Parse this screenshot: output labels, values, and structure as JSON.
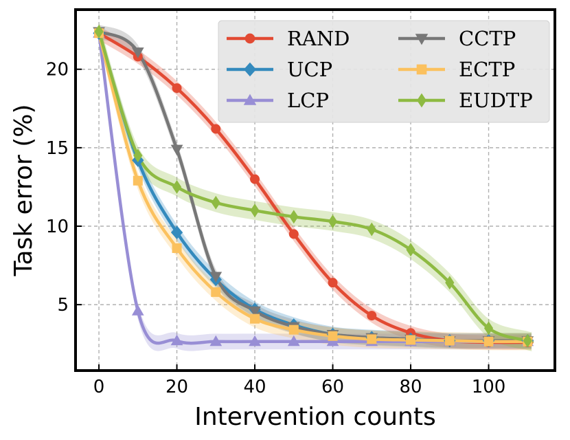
{
  "chart_data": {
    "type": "line",
    "title": "",
    "xlabel": "Intervention counts",
    "ylabel": "Task error (%)",
    "xlim": [
      -6,
      117
    ],
    "ylim": [
      0.8,
      23.8
    ],
    "xticks": [
      0,
      20,
      40,
      60,
      80,
      100
    ],
    "yticks": [
      5,
      10,
      15,
      20
    ],
    "grid": true,
    "legend_position": "top-right",
    "series": [
      {
        "name": "RAND",
        "color": "#e24a33",
        "marker": "circle",
        "x": [
          0,
          10,
          20,
          30,
          40,
          50,
          60,
          70,
          80,
          90,
          100,
          110
        ],
        "y": [
          22.3,
          20.8,
          18.8,
          16.2,
          13.0,
          9.5,
          6.4,
          4.3,
          3.2,
          2.7,
          2.6,
          2.6
        ],
        "band": 0.45
      },
      {
        "name": "UCP",
        "color": "#348abd",
        "marker": "diamond",
        "x": [
          0,
          10,
          20,
          30,
          40,
          50,
          60,
          70,
          80,
          90,
          100,
          110
        ],
        "y": [
          22.3,
          14.2,
          9.6,
          6.6,
          4.7,
          3.7,
          3.1,
          2.9,
          2.8,
          2.7,
          2.7,
          2.7
        ],
        "band": 0.5
      },
      {
        "name": "LCP",
        "color": "#988ed5",
        "marker": "triangle-up",
        "x": [
          0,
          10,
          20,
          30,
          40,
          50,
          60,
          70,
          80,
          90,
          100,
          110
        ],
        "y": [
          22.3,
          4.6,
          2.7,
          2.65,
          2.65,
          2.65,
          2.65,
          2.65,
          2.65,
          2.65,
          2.65,
          2.65
        ],
        "band": 0.5
      },
      {
        "name": "CCTP",
        "color": "#777777",
        "marker": "triangle-down",
        "x": [
          0,
          10,
          20,
          30,
          40,
          50,
          60,
          70,
          80,
          90,
          100,
          110
        ],
        "y": [
          22.4,
          21.1,
          14.9,
          6.8,
          4.6,
          3.6,
          3.1,
          2.9,
          2.8,
          2.7,
          2.7,
          2.7
        ],
        "band": 0.45
      },
      {
        "name": "ECTP",
        "color": "#fbc15e",
        "marker": "square",
        "x": [
          0,
          10,
          20,
          30,
          40,
          50,
          60,
          70,
          80,
          90,
          100,
          110
        ],
        "y": [
          22.3,
          12.9,
          8.6,
          5.8,
          4.1,
          3.4,
          3.0,
          2.8,
          2.75,
          2.7,
          2.65,
          2.65
        ],
        "band": 0.55
      },
      {
        "name": "EUDTP",
        "color": "#8eba42",
        "marker": "diamond-thin",
        "x": [
          0,
          10,
          20,
          30,
          40,
          50,
          60,
          70,
          80,
          90,
          100,
          110
        ],
        "y": [
          22.4,
          14.5,
          12.5,
          11.5,
          11.0,
          10.6,
          10.3,
          9.8,
          8.5,
          6.4,
          3.5,
          2.7
        ],
        "band": 0.6
      }
    ]
  }
}
